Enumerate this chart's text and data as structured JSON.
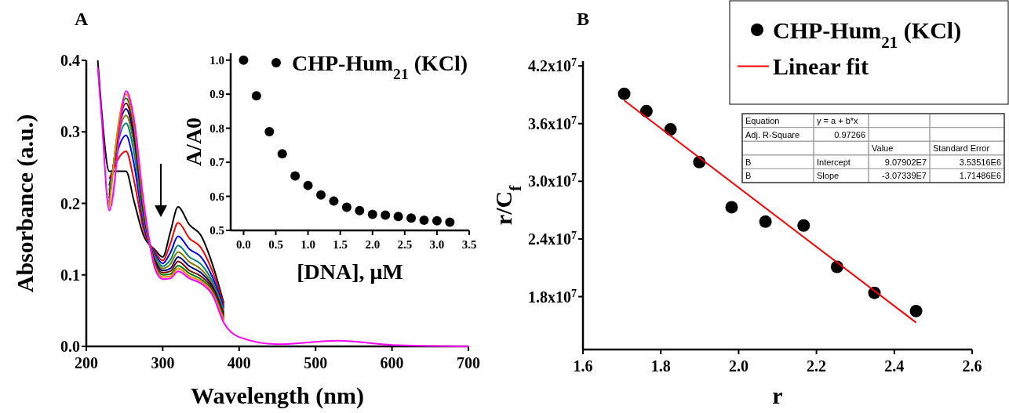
{
  "chart_data": [
    {
      "type": "line",
      "title": "A",
      "xlabel": "Wavelength (nm)",
      "ylabel": "Absorbance (a.u.)",
      "xlim": [
        200,
        700
      ],
      "xticks": [
        200,
        300,
        400,
        500,
        600,
        700
      ],
      "ylim": [
        0,
        0.4
      ],
      "yticks": [
        {
          "value": 0,
          "label": "0.0"
        },
        0.1,
        0.2,
        0.3,
        0.4
      ],
      "x": [
        215,
        220,
        230,
        252,
        262,
        275,
        290,
        300,
        310,
        320,
        335,
        350,
        365,
        380,
        400,
        450,
        530,
        600,
        700
      ],
      "series": [
        {
          "color": "#000000",
          "values": [
            0.4,
            0.33,
            0.245,
            0.245,
            0.205,
            0.155,
            0.135,
            0.125,
            0.16,
            0.195,
            0.17,
            0.155,
            0.115,
            0.06,
            null,
            null,
            null,
            null,
            null
          ]
        },
        {
          "color": "#ff0000",
          "values": [
            null,
            null,
            0.234,
            0.273,
            0.234,
            0.163,
            0.132,
            0.12,
            0.144,
            0.173,
            0.151,
            0.138,
            0.105,
            0.057,
            null,
            null,
            null,
            null,
            null
          ]
        },
        {
          "color": "#0000ff",
          "values": [
            null,
            null,
            0.225,
            0.295,
            0.257,
            0.17,
            0.129,
            0.116,
            0.131,
            0.154,
            0.136,
            0.125,
            0.097,
            0.054,
            null,
            null,
            null,
            null,
            null
          ]
        },
        {
          "color": "#008080",
          "values": [
            null,
            null,
            0.218,
            0.312,
            0.274,
            0.176,
            0.126,
            0.112,
            0.121,
            0.141,
            0.125,
            0.115,
            0.091,
            0.051,
            null,
            null,
            null,
            null,
            null
          ]
        },
        {
          "color": "#808000",
          "values": [
            null,
            null,
            0.212,
            0.323,
            0.286,
            0.181,
            0.123,
            0.109,
            0.115,
            0.132,
            0.118,
            0.108,
            0.087,
            0.048,
            null,
            null,
            null,
            null,
            null
          ]
        },
        {
          "color": "#000080",
          "values": [
            null,
            null,
            0.207,
            0.332,
            0.295,
            0.186,
            0.12,
            0.106,
            0.109,
            0.125,
            0.112,
            0.103,
            0.084,
            0.045,
            null,
            null,
            null,
            null,
            null
          ]
        },
        {
          "color": "#800000",
          "values": [
            null,
            null,
            0.202,
            0.34,
            0.303,
            0.19,
            0.117,
            0.103,
            0.105,
            0.119,
            0.106,
            0.098,
            0.081,
            0.042,
            null,
            null,
            null,
            null,
            null
          ]
        },
        {
          "color": "#008000",
          "values": [
            null,
            null,
            0.198,
            0.347,
            0.31,
            0.194,
            0.114,
            0.1,
            0.101,
            0.113,
            0.102,
            0.094,
            0.078,
            0.039,
            null,
            null,
            null,
            null,
            null
          ]
        },
        {
          "color": "#ff8000",
          "values": [
            null,
            null,
            0.194,
            0.353,
            0.315,
            0.198,
            0.111,
            0.097,
            0.098,
            0.109,
            0.098,
            0.091,
            0.075,
            0.036,
            null,
            null,
            null,
            null,
            null
          ]
        },
        {
          "color": "#ff00ff",
          "values": [
            0.39,
            0.32,
            0.19,
            0.357,
            0.32,
            0.202,
            0.108,
            0.094,
            0.095,
            0.105,
            0.095,
            0.088,
            0.072,
            0.033,
            0.013,
            0.003,
            0.008,
            0.002,
            0
          ]
        }
      ]
    },
    {
      "type": "scatter",
      "xlabel": "[DNA], μM",
      "ylabel": "A/A0",
      "xlim": [
        -0.2,
        3.5
      ],
      "xticks": [
        {
          "value": 0,
          "label": "0.0"
        },
        0.5,
        {
          "value": 1,
          "label": "1.0"
        },
        1.5,
        {
          "value": 2,
          "label": "2.0"
        },
        2.5,
        {
          "value": 3,
          "label": "3.0"
        },
        3.5
      ],
      "ylim": [
        0.5,
        1.02
      ],
      "yticks": [
        0.5,
        0.6,
        0.7,
        0.8,
        0.9,
        {
          "value": 1,
          "label": "1.0"
        }
      ],
      "marker": "circle",
      "legend": "top right",
      "x": [
        0,
        0.2,
        0.4,
        0.6,
        0.8,
        1,
        1.2,
        1.4,
        1.6,
        1.8,
        2,
        2.2,
        2.4,
        2.6,
        2.8,
        3,
        3.2
      ],
      "series": [
        {
          "name": "CHP-Hum$_{21}$ (KCl)",
          "color": "#000000",
          "values": [
            1,
            0.895,
            0.79,
            0.725,
            0.66,
            0.632,
            0.604,
            0.586,
            0.568,
            0.558,
            0.547,
            0.545,
            0.541,
            0.536,
            0.53,
            0.528,
            0.524
          ]
        }
      ]
    },
    {
      "type": "scatter",
      "title": "B",
      "xlabel": "r",
      "ylabel": "r/C$_{f}$",
      "xlim": [
        1.6,
        2.6
      ],
      "xticks": [
        1.6,
        1.8,
        {
          "value": 2,
          "label": "2.0"
        },
        2.2,
        2.4,
        2.6
      ],
      "ylim": [
        12500000,
        42500000
      ],
      "yticks": [
        {
          "value": 18000000,
          "label": "1.8x10$^{7}$"
        },
        {
          "value": 24000000,
          "label": "2.4x10$^{7}$"
        },
        {
          "value": 30000000,
          "label": "3.0x10$^{7}$"
        },
        {
          "value": 36000000,
          "label": "3.6x10$^{7}$"
        },
        {
          "value": 42000000,
          "label": "4.2x10$^{7}$"
        }
      ],
      "marker": "circle",
      "legend": "top right",
      "annotations": [
        "Equation",
        "y = a + b*x",
        "Adj. R-Square",
        "0.97266",
        "Value",
        "Standard Error",
        "B",
        "Intercept",
        "9.07902E7",
        "3.53516E6",
        "B",
        "Slope",
        "-3.07339E7",
        "1.71486E6"
      ],
      "x": [
        1.706,
        1.763,
        1.825,
        1.899,
        1.982,
        2.069,
        2.167,
        2.253,
        2.349,
        2.456
      ],
      "series": [
        {
          "name": "CHP-Hum$_{21}$ (KCl)",
          "color": "#000000",
          "values": [
            39100000,
            37300000,
            35400000,
            32000000,
            27300000,
            25800000,
            25400000,
            21100000,
            18400000,
            16500000
          ]
        },
        {
          "name": "Linear fit",
          "type": "line",
          "marker": "none",
          "color": "#ff0000",
          "x": [
            1.706,
            2.456
          ],
          "values": [
            38400000,
            15300000
          ]
        }
      ]
    }
  ]
}
